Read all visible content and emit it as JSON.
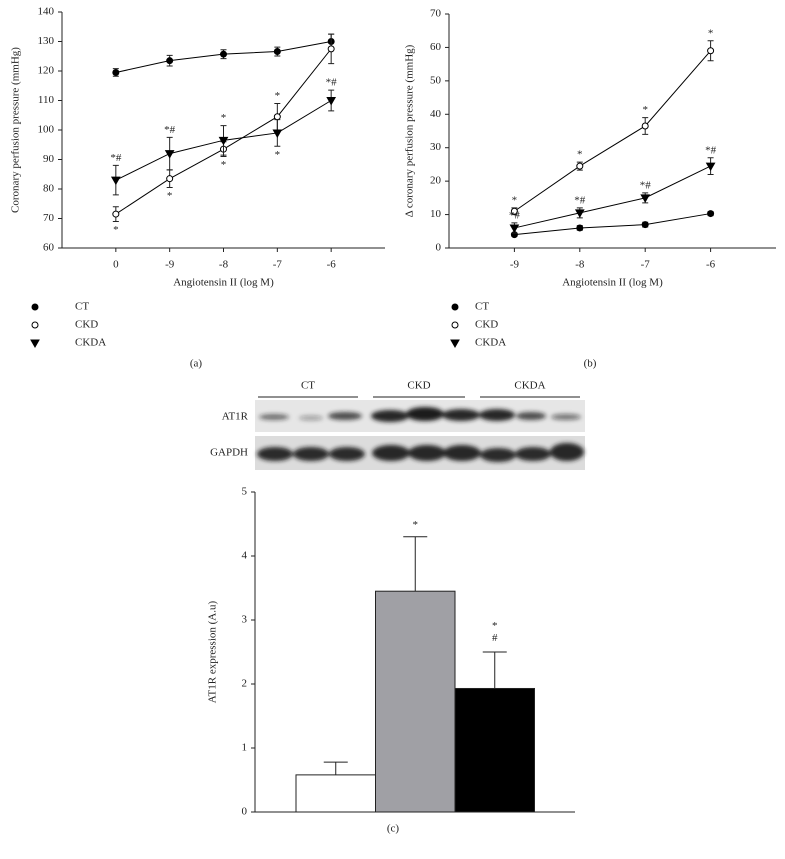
{
  "chart_data": [
    {
      "type": "line",
      "panel_label": "(a)",
      "x_label": "Angiotensin II (log M)",
      "y_label": "Coronary perfusion pressure (mmHg)",
      "categories": [
        "0",
        "-9",
        "-8",
        "-7",
        "-6"
      ],
      "ylim": [
        60,
        140
      ],
      "yticks": [
        60,
        70,
        80,
        90,
        100,
        110,
        120,
        130,
        140
      ],
      "series": [
        {
          "name": "CT",
          "color": "#000000",
          "marker": "circle",
          "fill": "#000000",
          "values": [
            119.5,
            123.5,
            125.7,
            126.6,
            130
          ],
          "errors": [
            1.3,
            1.8,
            1.5,
            1.5,
            2.5
          ],
          "annotations": [
            null,
            null,
            null,
            null,
            null
          ]
        },
        {
          "name": "CKD",
          "color": "#000000",
          "marker": "circle",
          "fill": "#ffffff",
          "values": [
            71.5,
            83.5,
            93.5,
            104.5,
            127.5
          ],
          "errors": [
            2.5,
            3,
            2.5,
            4.5,
            5
          ],
          "annotations": [
            "*",
            "*",
            "*",
            "*",
            null
          ]
        },
        {
          "name": "CKDA",
          "color": "#000000",
          "marker": "triangle-down",
          "fill": "#000000",
          "values": [
            83,
            92,
            96.5,
            99,
            110
          ],
          "errors": [
            5,
            5.5,
            5,
            4.5,
            3.5
          ],
          "annotations": [
            "*#",
            "*#",
            "*",
            "*",
            "*#"
          ]
        }
      ]
    },
    {
      "type": "line",
      "panel_label": "(b)",
      "x_label": "Angiotensin II (log M)",
      "y_label": "Δ coronary perfusion pressure (mmHg)",
      "categories": [
        "-9",
        "-8",
        "-7",
        "-6"
      ],
      "ylim": [
        0,
        70
      ],
      "yticks": [
        0,
        10,
        20,
        30,
        40,
        50,
        60,
        70
      ],
      "series": [
        {
          "name": "CT",
          "color": "#000000",
          "marker": "circle",
          "fill": "#000000",
          "values": [
            4,
            6,
            7,
            10.3
          ],
          "errors": [
            0.5,
            0.7,
            0.7,
            0.6
          ],
          "annotations": [
            null,
            null,
            null,
            null
          ]
        },
        {
          "name": "CKD",
          "color": "#000000",
          "marker": "circle",
          "fill": "#ffffff",
          "values": [
            11,
            24.5,
            36.5,
            59
          ],
          "errors": [
            1,
            1.2,
            2.5,
            3
          ],
          "annotations": [
            "*",
            "*",
            "*",
            "*"
          ]
        },
        {
          "name": "CKDA",
          "color": "#000000",
          "marker": "triangle-down",
          "fill": "#000000",
          "values": [
            6,
            10.5,
            15,
            24.5
          ],
          "errors": [
            1.5,
            1.5,
            1.5,
            2.5
          ],
          "annotations": [
            "*#",
            "*#",
            "*#",
            "*#"
          ]
        }
      ]
    },
    {
      "type": "bar",
      "panel_label": "(c)",
      "y_label": "AT1R expression (A.u)",
      "blot_groups": [
        "CT",
        "CKD",
        "CKDA"
      ],
      "blot_rows": [
        "AT1R",
        "GAPDH"
      ],
      "categories": [
        null,
        null,
        null
      ],
      "values": [
        0.58,
        3.45,
        1.93
      ],
      "errors": [
        0.2,
        0.85,
        0.57
      ],
      "colors": [
        "#ffffff",
        "#a0a0a5",
        "#000000"
      ],
      "annotations": [
        null,
        "*",
        "*#"
      ],
      "ylim": [
        0,
        5
      ],
      "yticks": [
        0,
        1,
        2,
        3,
        4,
        5
      ]
    }
  ]
}
